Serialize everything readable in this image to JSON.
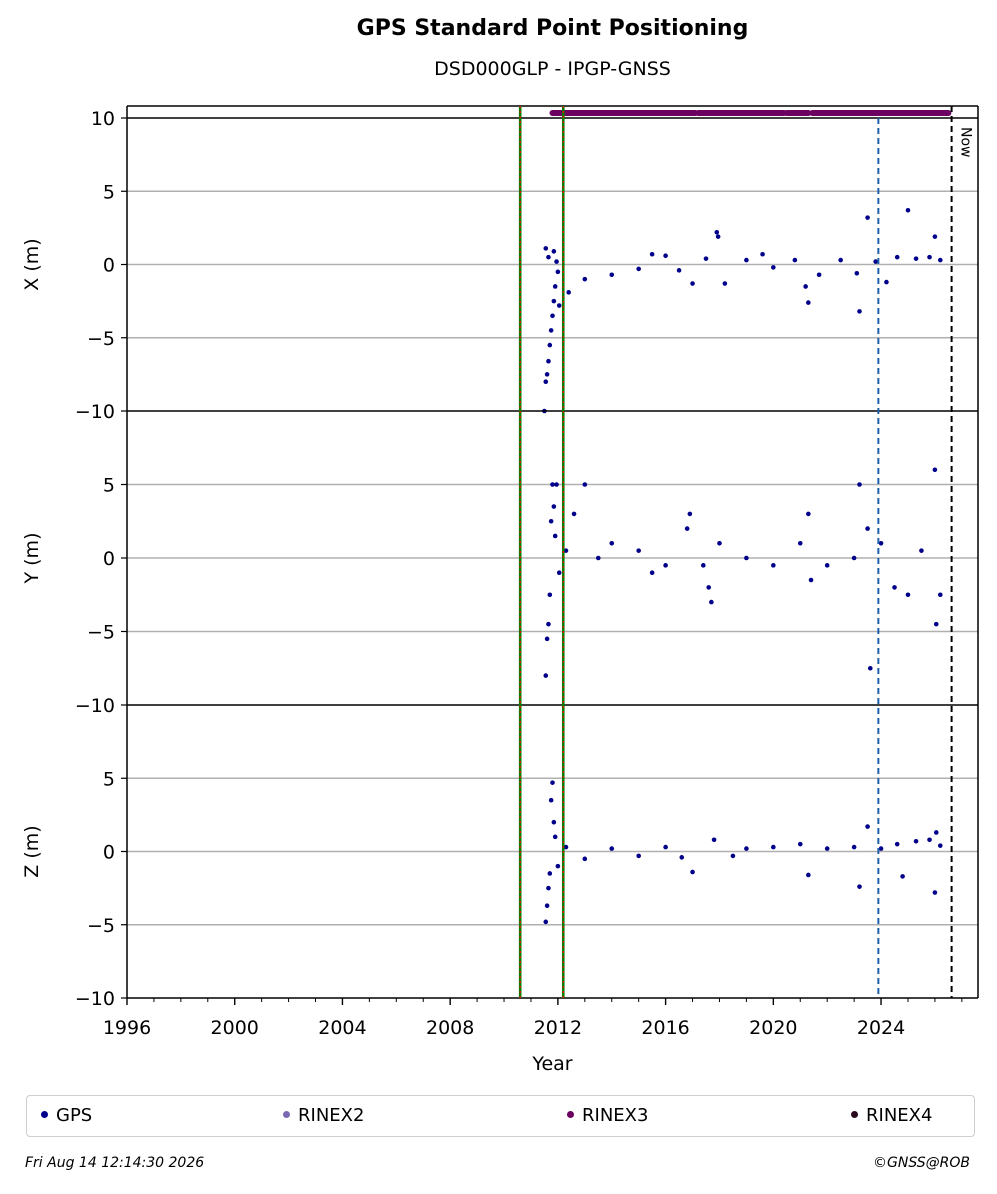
{
  "title": "GPS Standard Point Positioning",
  "subtitle": "DSD000GLP - IPGP-GNSS",
  "now_label": "Now",
  "footer": {
    "date": "Fri Aug 14 12:14:30 2026",
    "copyright": "©GNSS@ROB"
  },
  "legend": [
    {
      "label": "GPS",
      "color": "#00008b"
    },
    {
      "label": "RINEX2",
      "color": "#7b68b5"
    },
    {
      "label": "RINEX3",
      "color": "#6b0060"
    },
    {
      "label": "RINEX4",
      "color": "#2a0a1e"
    }
  ],
  "colors": {
    "gps": "#00008b",
    "rinex3": "#6b0060",
    "equipment_change": "#008000",
    "marker": "#ff0000",
    "reference": "#1f5fa8",
    "now": "#000000"
  },
  "chart_data": {
    "type": "scatter",
    "xlabel": "Year",
    "xlim": [
      1996,
      2027.6
    ],
    "xticks": [
      1996,
      2000,
      2004,
      2008,
      2012,
      2016,
      2020,
      2024
    ],
    "grid": true,
    "events": {
      "equipment_changes": [
        2010.6,
        2012.2
      ],
      "reference_epoch": 2023.9,
      "now": 2026.62
    },
    "rinex3_coverage": [
      [
        2011.8,
        2017.1
      ],
      [
        2017.2,
        2020.4
      ],
      [
        2020.5,
        2021.3
      ],
      [
        2021.45,
        2026.5
      ]
    ],
    "panels": [
      {
        "ylabel": "X (m)",
        "ylim": [
          -10,
          10
        ],
        "yticks": [
          10,
          5,
          0,
          -5,
          -10
        ],
        "series": [
          {
            "name": "GPS",
            "points": [
              [
                2011.5,
                -10.0
              ],
              [
                2011.55,
                -8.0
              ],
              [
                2011.6,
                -7.5
              ],
              [
                2011.65,
                -6.6
              ],
              [
                2011.7,
                -5.5
              ],
              [
                2011.75,
                -4.5
              ],
              [
                2011.8,
                -3.5
              ],
              [
                2011.85,
                -2.5
              ],
              [
                2011.9,
                -1.5
              ],
              [
                2011.95,
                0.2
              ],
              [
                2012.0,
                -0.5
              ],
              [
                2012.05,
                -2.8
              ],
              [
                2011.55,
                1.1
              ],
              [
                2011.65,
                0.5
              ],
              [
                2011.85,
                0.9
              ],
              [
                2012.4,
                -1.9
              ],
              [
                2013.0,
                -1.0
              ],
              [
                2014.0,
                -0.7
              ],
              [
                2015.0,
                -0.3
              ],
              [
                2015.5,
                0.7
              ],
              [
                2016.0,
                0.6
              ],
              [
                2016.5,
                -0.4
              ],
              [
                2017.0,
                -1.3
              ],
              [
                2017.5,
                0.4
              ],
              [
                2017.9,
                2.2
              ],
              [
                2017.95,
                1.9
              ],
              [
                2018.2,
                -1.3
              ],
              [
                2019.0,
                0.3
              ],
              [
                2019.6,
                0.7
              ],
              [
                2020.0,
                -0.2
              ],
              [
                2020.8,
                0.3
              ],
              [
                2021.2,
                -1.5
              ],
              [
                2021.3,
                -2.6
              ],
              [
                2021.7,
                -0.7
              ],
              [
                2022.5,
                0.3
              ],
              [
                2023.1,
                -0.6
              ],
              [
                2023.2,
                -3.2
              ],
              [
                2023.5,
                3.2
              ],
              [
                2023.8,
                0.2
              ],
              [
                2024.2,
                -1.2
              ],
              [
                2024.6,
                0.5
              ],
              [
                2025.0,
                3.7
              ],
              [
                2025.3,
                0.4
              ],
              [
                2025.8,
                0.5
              ],
              [
                2026.0,
                1.9
              ],
              [
                2026.2,
                0.3
              ]
            ]
          }
        ]
      },
      {
        "ylabel": "Y (m)",
        "ylim": [
          -10,
          10
        ],
        "yticks": [
          5,
          0,
          -5,
          -10
        ],
        "series": [
          {
            "name": "GPS",
            "points": [
              [
                2011.55,
                -8.0
              ],
              [
                2011.6,
                -5.5
              ],
              [
                2011.65,
                -4.5
              ],
              [
                2011.7,
                -2.5
              ],
              [
                2011.75,
                2.5
              ],
              [
                2011.8,
                5.0
              ],
              [
                2011.85,
                3.5
              ],
              [
                2011.9,
                1.5
              ],
              [
                2011.95,
                5.0
              ],
              [
                2012.05,
                -1.0
              ],
              [
                2012.3,
                0.5
              ],
              [
                2012.6,
                3.0
              ],
              [
                2013.0,
                5.0
              ],
              [
                2013.5,
                0.0
              ],
              [
                2014.0,
                1.0
              ],
              [
                2015.0,
                0.5
              ],
              [
                2015.5,
                -1.0
              ],
              [
                2016.0,
                -0.5
              ],
              [
                2016.8,
                2.0
              ],
              [
                2016.9,
                3.0
              ],
              [
                2017.4,
                -0.5
              ],
              [
                2017.6,
                -2.0
              ],
              [
                2017.7,
                -3.0
              ],
              [
                2018.0,
                1.0
              ],
              [
                2019.0,
                0.0
              ],
              [
                2020.0,
                -0.5
              ],
              [
                2021.0,
                1.0
              ],
              [
                2021.3,
                3.0
              ],
              [
                2021.4,
                -1.5
              ],
              [
                2022.0,
                -0.5
              ],
              [
                2023.0,
                0.0
              ],
              [
                2023.2,
                5.0
              ],
              [
                2023.5,
                2.0
              ],
              [
                2023.6,
                -7.5
              ],
              [
                2024.0,
                1.0
              ],
              [
                2024.5,
                -2.0
              ],
              [
                2025.0,
                -2.5
              ],
              [
                2025.5,
                0.5
              ],
              [
                2026.0,
                6.0
              ],
              [
                2026.05,
                -4.5
              ],
              [
                2026.2,
                -2.5
              ]
            ]
          }
        ]
      },
      {
        "ylabel": "Z (m)",
        "ylim": [
          -10,
          10
        ],
        "yticks": [
          5,
          0,
          -5,
          -10
        ],
        "series": [
          {
            "name": "GPS",
            "points": [
              [
                2011.55,
                -4.8
              ],
              [
                2011.6,
                -3.7
              ],
              [
                2011.65,
                -2.5
              ],
              [
                2011.7,
                -1.5
              ],
              [
                2011.75,
                3.5
              ],
              [
                2011.8,
                4.7
              ],
              [
                2011.85,
                2.0
              ],
              [
                2011.9,
                1.0
              ],
              [
                2012.0,
                -1.0
              ],
              [
                2012.3,
                0.3
              ],
              [
                2013.0,
                -0.5
              ],
              [
                2014.0,
                0.2
              ],
              [
                2015.0,
                -0.3
              ],
              [
                2016.0,
                0.3
              ],
              [
                2016.6,
                -0.4
              ],
              [
                2017.0,
                -1.4
              ],
              [
                2017.8,
                0.8
              ],
              [
                2018.5,
                -0.3
              ],
              [
                2019.0,
                0.2
              ],
              [
                2020.0,
                0.3
              ],
              [
                2021.0,
                0.5
              ],
              [
                2021.3,
                -1.6
              ],
              [
                2022.0,
                0.2
              ],
              [
                2023.0,
                0.3
              ],
              [
                2023.2,
                -2.4
              ],
              [
                2023.5,
                1.7
              ],
              [
                2024.0,
                0.2
              ],
              [
                2024.6,
                0.5
              ],
              [
                2024.8,
                -1.7
              ],
              [
                2025.3,
                0.7
              ],
              [
                2025.8,
                0.8
              ],
              [
                2026.0,
                -2.8
              ],
              [
                2026.05,
                1.3
              ],
              [
                2026.2,
                0.4
              ]
            ]
          }
        ]
      }
    ]
  }
}
